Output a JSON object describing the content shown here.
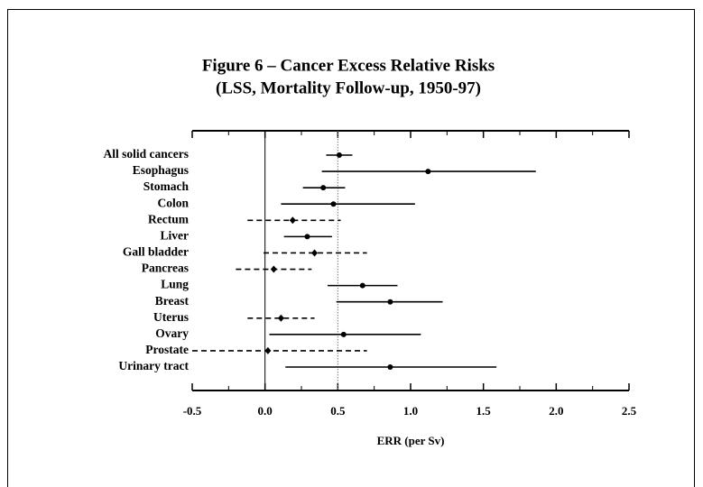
{
  "chart_data": {
    "type": "forest",
    "title": "Figure 6 – Cancer Excess Relative Risks",
    "subtitle": "(LSS, Mortality Follow-up, 1950-97)",
    "x_label": "ERR (per Sv)",
    "categories": [
      "All solid cancers",
      "Esophagus",
      "Stomach",
      "Colon",
      "Rectum",
      "Liver",
      "Gall bladder",
      "Pancreas",
      "Lung",
      "Breast",
      "Uterus",
      "Ovary",
      "Prostate",
      "Urinary tract"
    ],
    "values": [
      0.51,
      1.12,
      0.4,
      0.47,
      0.19,
      0.29,
      0.34,
      0.06,
      0.67,
      0.86,
      0.11,
      0.54,
      0.02,
      0.86
    ],
    "lower": [
      0.42,
      0.39,
      0.26,
      0.11,
      -0.12,
      0.13,
      -0.01,
      -0.2,
      0.43,
      0.49,
      -0.12,
      0.03,
      -0.5,
      0.14
    ],
    "upper": [
      0.6,
      1.86,
      0.55,
      1.03,
      0.52,
      0.46,
      0.7,
      0.32,
      0.91,
      1.22,
      0.34,
      1.07,
      0.7,
      1.59
    ],
    "dashed": [
      false,
      false,
      false,
      false,
      true,
      false,
      true,
      true,
      false,
      false,
      true,
      false,
      true,
      false
    ],
    "color": "#000000",
    "xlim": [
      -0.5,
      2.5
    ],
    "xticks": [
      -0.5,
      {
        "value": 0,
        "label": "0.0"
      },
      0.5,
      {
        "value": 1,
        "label": "1.0"
      },
      1.5,
      {
        "value": 2,
        "label": "2.0"
      },
      2.5
    ],
    "reference_lines": [
      {
        "value": 0,
        "style": "solid"
      },
      {
        "value": 0.5,
        "style": "dotted"
      }
    ]
  }
}
